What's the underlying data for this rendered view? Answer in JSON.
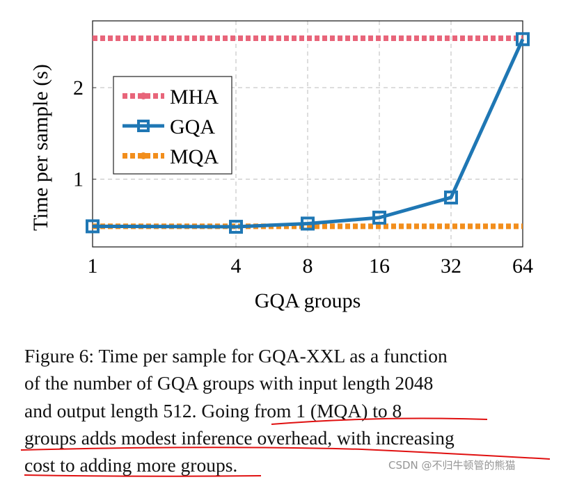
{
  "chart_data": {
    "type": "line",
    "xlabel": "GQA groups",
    "ylabel": "Time per sample (s)",
    "x_scale": "log2",
    "x": [
      1,
      4,
      8,
      16,
      32,
      64
    ],
    "x_tick_labels": [
      "1",
      "4",
      "8",
      "16",
      "32",
      "64"
    ],
    "y_ticks": [
      1,
      2
    ],
    "y_tick_labels": [
      "1",
      "2"
    ],
    "xlim": [
      1,
      64
    ],
    "ylim": [
      0.26,
      2.73
    ],
    "grid": true,
    "legend_position": "center-left",
    "series": [
      {
        "name": "MHA",
        "values": [
          2.54,
          2.54,
          2.54,
          2.54,
          2.54,
          2.54
        ],
        "color": "#e8657a",
        "style": "dotted"
      },
      {
        "name": "GQA",
        "values": [
          0.485,
          0.48,
          0.515,
          0.58,
          0.8,
          2.53
        ],
        "color": "#1f77b4",
        "style": "solid-square-markers"
      },
      {
        "name": "MQA",
        "values": [
          0.485,
          0.485,
          0.485,
          0.485,
          0.485,
          0.485
        ],
        "color": "#f28e1c",
        "style": "dotted"
      }
    ]
  },
  "caption": {
    "lines": [
      "Figure 6: Time per sample for GQA-XXL as a function",
      "of the number of GQA groups with input length 2048",
      "and output length 512.  Going from 1 (MQA) to 8",
      "groups adds modest inference overhead, with increasing",
      "cost to adding more groups."
    ],
    "underline_color": "#e01010"
  },
  "watermark": "CSDN @不归牛顿管的熊猫"
}
